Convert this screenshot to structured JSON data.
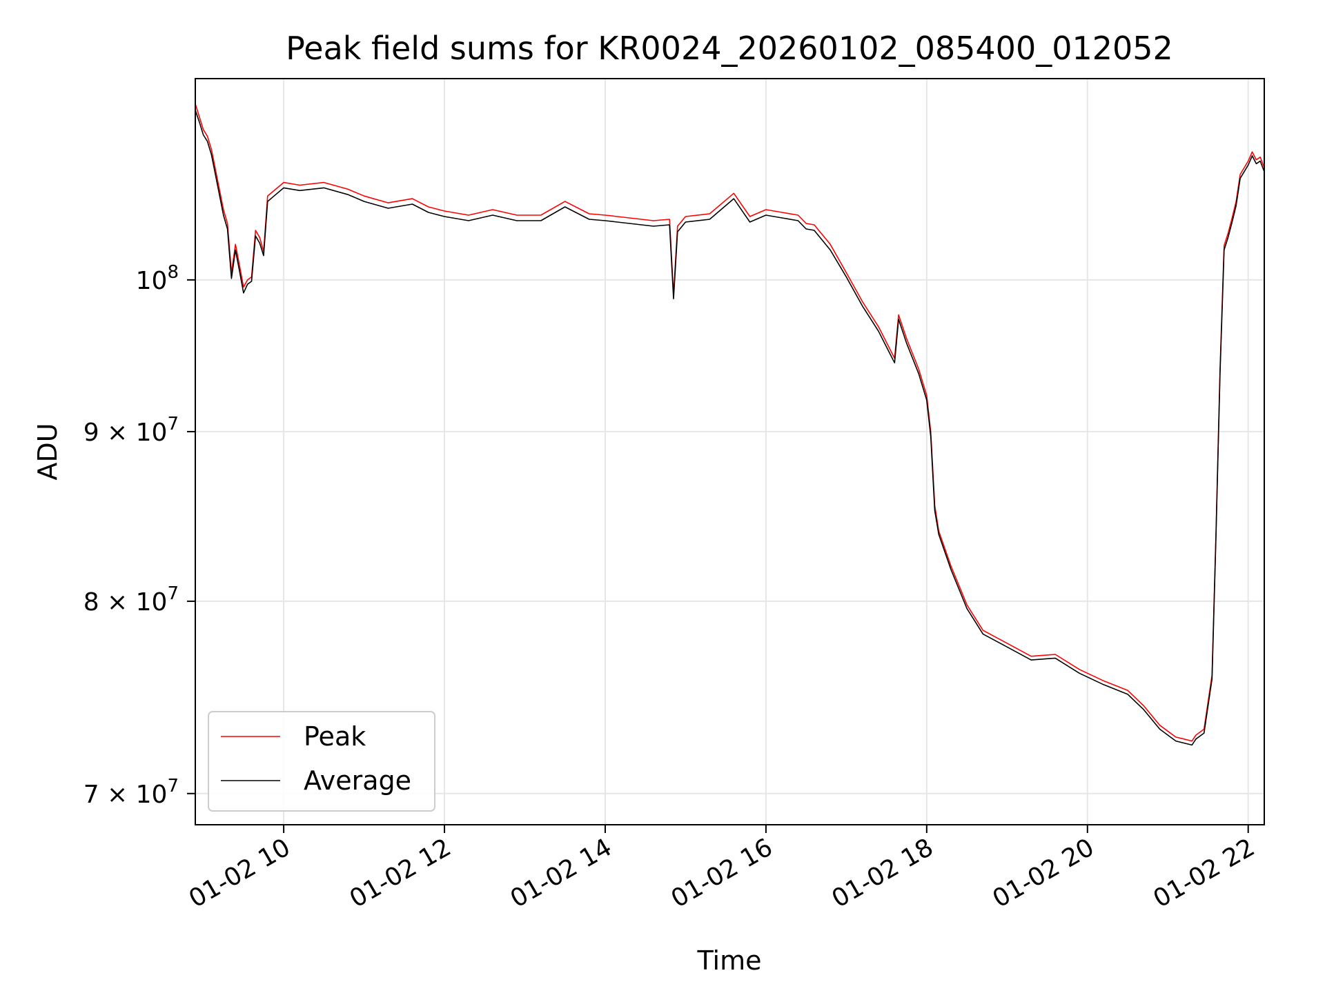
{
  "chart_data": {
    "type": "line",
    "title": "Peak field sums for KR0024_20260102_085400_012052",
    "xlabel": "Time",
    "ylabel": "ADU",
    "xlim_hours": [
      8.9,
      22.2
    ],
    "ylim": [
      68500000,
      115000000
    ],
    "yscale": "log",
    "grid": true,
    "legend_position": "lower-left",
    "x_ticks": [
      {
        "value": 10,
        "label": "01-02 10"
      },
      {
        "value": 12,
        "label": "01-02 12"
      },
      {
        "value": 14,
        "label": "01-02 14"
      },
      {
        "value": 16,
        "label": "01-02 16"
      },
      {
        "value": 18,
        "label": "01-02 18"
      },
      {
        "value": 20,
        "label": "01-02 20"
      },
      {
        "value": 22,
        "label": "01-02 22"
      }
    ],
    "y_ticks": [
      {
        "value": 70000000,
        "label": "7 × 10",
        "exp": "7"
      },
      {
        "value": 80000000,
        "label": "8 × 10",
        "exp": "7"
      },
      {
        "value": 90000000,
        "label": "9 × 10",
        "exp": "7"
      },
      {
        "value": 100000000,
        "label": "10",
        "exp": "8"
      }
    ],
    "series": [
      {
        "name": "Peak",
        "color": "#ff0000",
        "x": [
          8.9,
          8.95,
          9.0,
          9.05,
          9.1,
          9.15,
          9.2,
          9.25,
          9.3,
          9.35,
          9.4,
          9.45,
          9.5,
          9.55,
          9.6,
          9.65,
          9.7,
          9.75,
          9.8,
          9.9,
          10.0,
          10.2,
          10.5,
          10.8,
          11.0,
          11.3,
          11.6,
          11.8,
          12.0,
          12.3,
          12.6,
          12.9,
          13.2,
          13.5,
          13.8,
          14.0,
          14.3,
          14.6,
          14.8,
          14.85,
          14.9,
          15.0,
          15.3,
          15.6,
          15.8,
          16.0,
          16.2,
          16.4,
          16.5,
          16.6,
          16.8,
          17.0,
          17.2,
          17.4,
          17.6,
          17.65,
          17.75,
          17.9,
          18.0,
          18.05,
          18.1,
          18.15,
          18.3,
          18.5,
          18.7,
          19.0,
          19.3,
          19.6,
          19.9,
          20.2,
          20.5,
          20.7,
          20.9,
          21.0,
          21.1,
          21.2,
          21.3,
          21.35,
          21.45,
          21.55,
          21.6,
          21.65,
          21.7,
          21.75,
          21.8,
          21.85,
          21.9,
          22.0,
          22.05,
          22.1,
          22.15,
          22.2
        ],
        "values": [
          113000000,
          112000000,
          111000000,
          110500000,
          109500000,
          108000000,
          106500000,
          105000000,
          104000000,
          100500000,
          102500000,
          101000000,
          99500000,
          100000000,
          100200000,
          103500000,
          103000000,
          102000000,
          106000000,
          106500000,
          107000000,
          106800000,
          107000000,
          106500000,
          106000000,
          105500000,
          105800000,
          105200000,
          104900000,
          104600000,
          105000000,
          104600000,
          104600000,
          105600000,
          104700000,
          104600000,
          104400000,
          104200000,
          104300000,
          99000000,
          103800000,
          104500000,
          104700000,
          106200000,
          104500000,
          105000000,
          104800000,
          104600000,
          104000000,
          103900000,
          102500000,
          100500000,
          98500000,
          96800000,
          94700000,
          97600000,
          96000000,
          94000000,
          92300000,
          90000000,
          85500000,
          84000000,
          82000000,
          79800000,
          78400000,
          77700000,
          77000000,
          77100000,
          76300000,
          75700000,
          75200000,
          74400000,
          73400000,
          73100000,
          72800000,
          72700000,
          72600000,
          72900000,
          73200000,
          76000000,
          84000000,
          94000000,
          102400000,
          103300000,
          104400000,
          105600000,
          107600000,
          108600000,
          109300000,
          108700000,
          108900000,
          108100000
        ]
      },
      {
        "name": "Average",
        "color": "#000000",
        "x": [
          8.9,
          8.95,
          9.0,
          9.05,
          9.1,
          9.15,
          9.2,
          9.25,
          9.3,
          9.35,
          9.4,
          9.45,
          9.5,
          9.55,
          9.6,
          9.65,
          9.7,
          9.75,
          9.8,
          9.9,
          10.0,
          10.2,
          10.5,
          10.8,
          11.0,
          11.3,
          11.6,
          11.8,
          12.0,
          12.3,
          12.6,
          12.9,
          13.2,
          13.5,
          13.8,
          14.0,
          14.3,
          14.6,
          14.8,
          14.85,
          14.9,
          15.0,
          15.3,
          15.6,
          15.8,
          16.0,
          16.2,
          16.4,
          16.5,
          16.6,
          16.8,
          17.0,
          17.2,
          17.4,
          17.6,
          17.65,
          17.75,
          17.9,
          18.0,
          18.05,
          18.1,
          18.15,
          18.3,
          18.5,
          18.7,
          19.0,
          19.3,
          19.6,
          19.9,
          20.2,
          20.5,
          20.7,
          20.9,
          21.0,
          21.1,
          21.2,
          21.3,
          21.35,
          21.45,
          21.55,
          21.6,
          21.65,
          21.7,
          21.75,
          21.8,
          21.85,
          21.9,
          22.0,
          22.05,
          22.1,
          22.15,
          22.2
        ],
        "values": [
          112500000,
          111600000,
          110600000,
          110100000,
          109100000,
          107600000,
          106100000,
          104600000,
          103600000,
          100100000,
          102100000,
          100600000,
          99100000,
          99700000,
          99900000,
          103100000,
          102600000,
          101700000,
          105600000,
          106100000,
          106600000,
          106400000,
          106600000,
          106100000,
          105600000,
          105100000,
          105400000,
          104800000,
          104500000,
          104200000,
          104600000,
          104200000,
          104200000,
          105200000,
          104300000,
          104200000,
          104000000,
          103800000,
          103900000,
          98700000,
          103400000,
          104100000,
          104300000,
          105800000,
          104100000,
          104600000,
          104400000,
          104200000,
          103600000,
          103500000,
          102100000,
          100200000,
          98200000,
          96500000,
          94400000,
          97300000,
          95700000,
          93700000,
          92000000,
          89700000,
          85200000,
          83800000,
          81800000,
          79600000,
          78200000,
          77500000,
          76800000,
          76900000,
          76100000,
          75500000,
          75000000,
          74200000,
          73200000,
          72900000,
          72600000,
          72500000,
          72400000,
          72700000,
          73000000,
          75800000,
          83800000,
          93700000,
          102100000,
          103000000,
          104100000,
          105300000,
          107300000,
          108300000,
          109000000,
          108400000,
          108600000,
          107800000
        ]
      }
    ]
  }
}
